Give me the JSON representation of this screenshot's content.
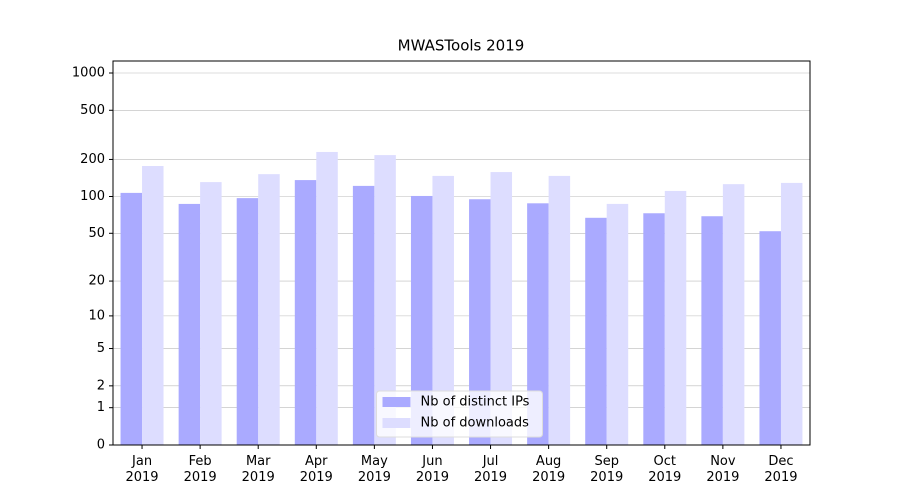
{
  "chart_data": {
    "type": "bar",
    "title": "MWASTools 2019",
    "categories": [
      "Jan\n2019",
      "Feb\n2019",
      "Mar\n2019",
      "Apr\n2019",
      "May\n2019",
      "Jun\n2019",
      "Jul\n2019",
      "Aug\n2019",
      "Sep\n2019",
      "Oct\n2019",
      "Nov\n2019",
      "Dec\n2019"
    ],
    "series": [
      {
        "name": "Nb of distinct IPs",
        "color": "#aaaaff",
        "values": [
          107,
          87,
          97,
          136,
          122,
          101,
          95,
          88,
          67,
          73,
          69,
          52
        ]
      },
      {
        "name": "Nb of downloads",
        "color": "#ddddff",
        "values": [
          177,
          131,
          152,
          230,
          217,
          147,
          158,
          147,
          87,
          111,
          126,
          129
        ]
      }
    ],
    "yscale": "symlog",
    "ylim": [
      0,
      1250
    ],
    "yticks": [
      0,
      1,
      2,
      5,
      10,
      20,
      50,
      100,
      200,
      500,
      1000
    ],
    "grid": true,
    "legend": "lower center"
  }
}
